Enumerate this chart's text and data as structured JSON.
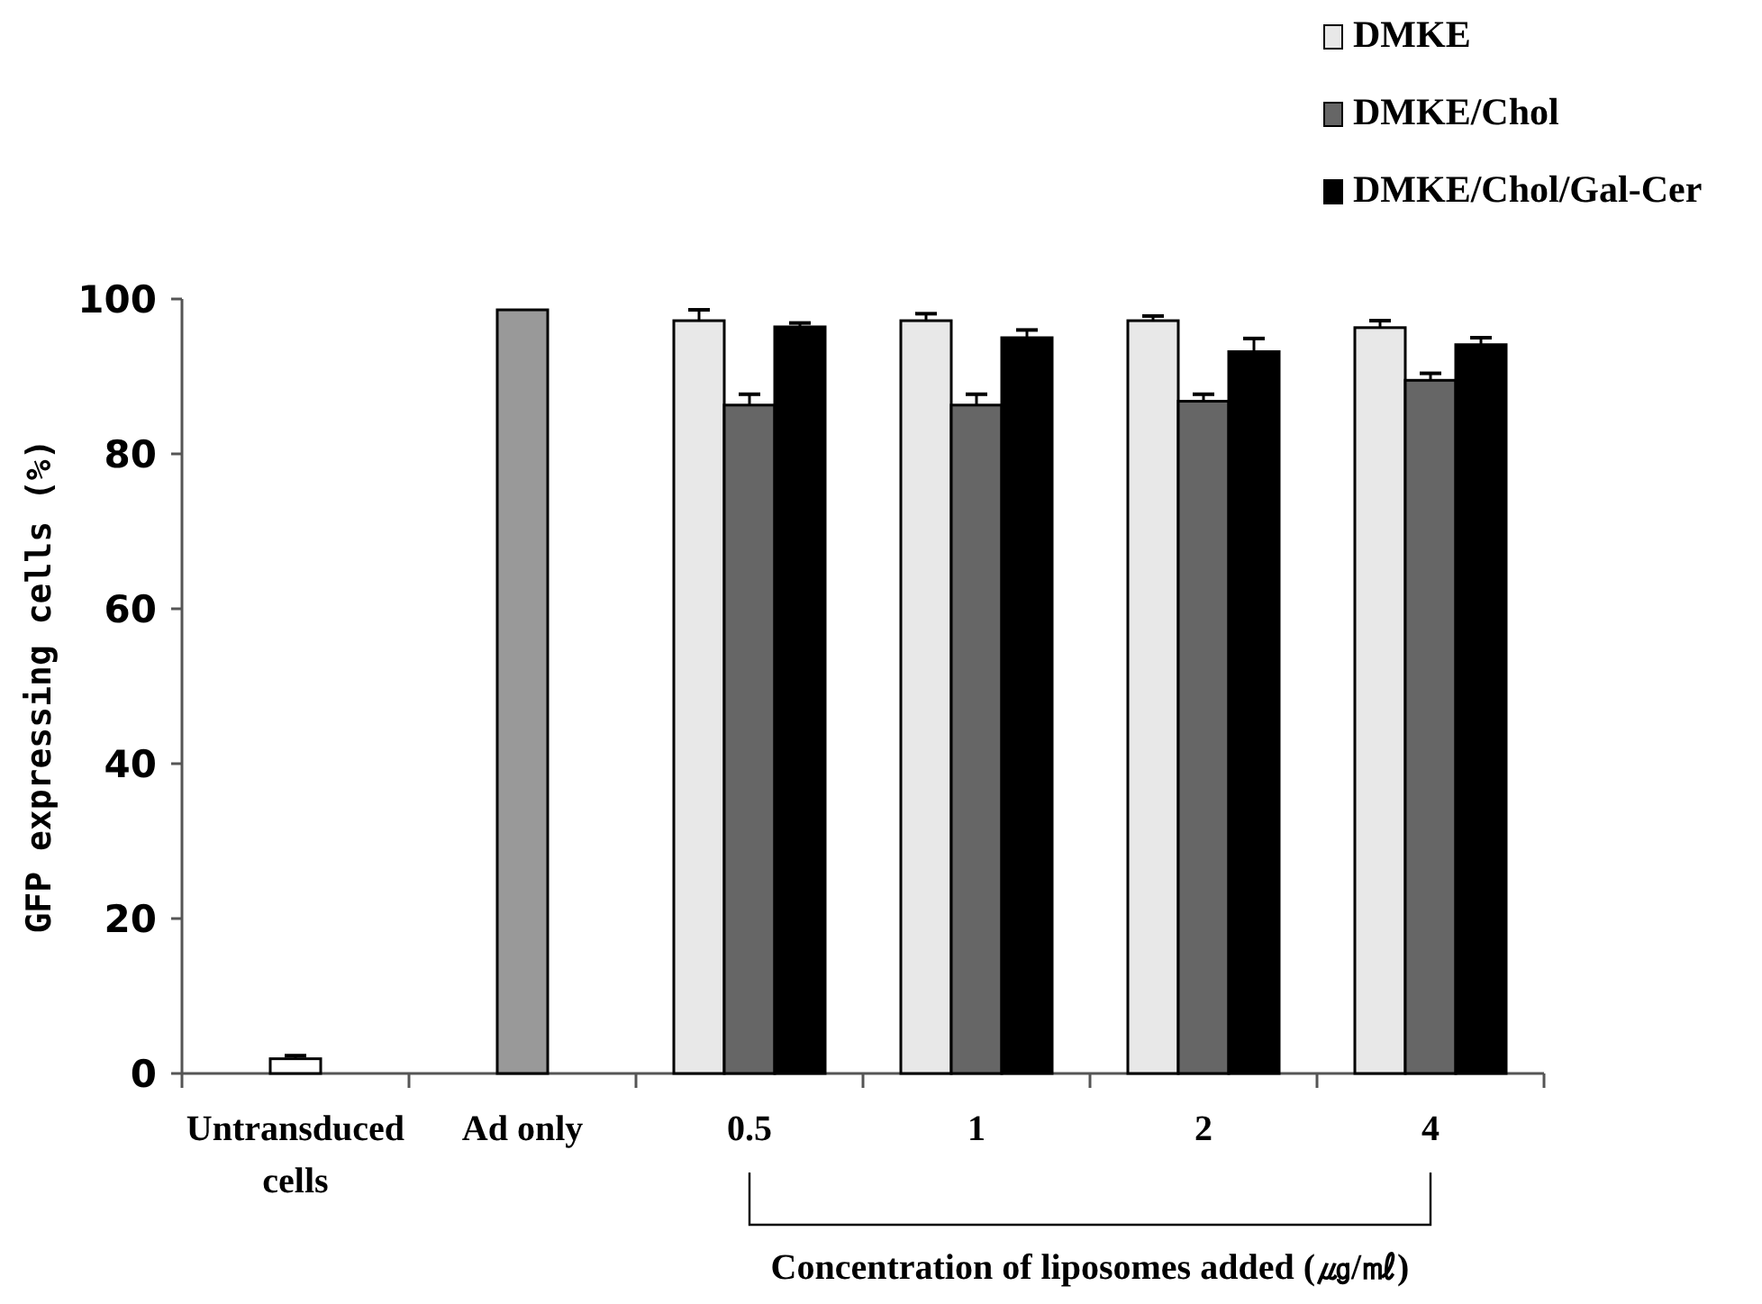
{
  "chart_data": {
    "type": "bar",
    "ylabel": "GFP expressing cells (%)",
    "xlabel": "Concentration of liposomes added (㎍/㎖)",
    "categories": [
      "Untransduced cells",
      "Ad only",
      "0.5",
      "1",
      "2",
      "4"
    ],
    "series": [
      {
        "name": "DMKE",
        "color": "#e8e8e8",
        "values": [
          null,
          null,
          97.2,
          97.2,
          97.2,
          96.3
        ],
        "errors": [
          null,
          null,
          1.4,
          0.9,
          0.6,
          0.9
        ]
      },
      {
        "name": "DMKE/Chol",
        "color": "#666666",
        "values": [
          null,
          null,
          86.3,
          86.3,
          86.8,
          89.5
        ],
        "errors": [
          null,
          null,
          1.4,
          1.4,
          0.9,
          0.9
        ]
      },
      {
        "name": "DMKE/Chol/Gal-Cer",
        "color": "#000000",
        "values": [
          null,
          null,
          96.4,
          95.0,
          93.2,
          94.1
        ],
        "errors": [
          null,
          null,
          0.5,
          1.0,
          1.7,
          0.9
        ]
      },
      {
        "color": "#ffffff",
        "values": [
          1.9,
          null,
          null,
          null,
          null,
          null
        ],
        "errors": [
          0.4,
          null,
          null,
          null,
          null,
          null
        ]
      },
      {
        "color": "#999999",
        "values": [
          null,
          98.6,
          null,
          null,
          null,
          null
        ]
      }
    ],
    "ylim": [
      0,
      100
    ],
    "yticks": [
      0,
      20,
      40,
      60,
      80,
      100
    ],
    "legend": "top right"
  }
}
